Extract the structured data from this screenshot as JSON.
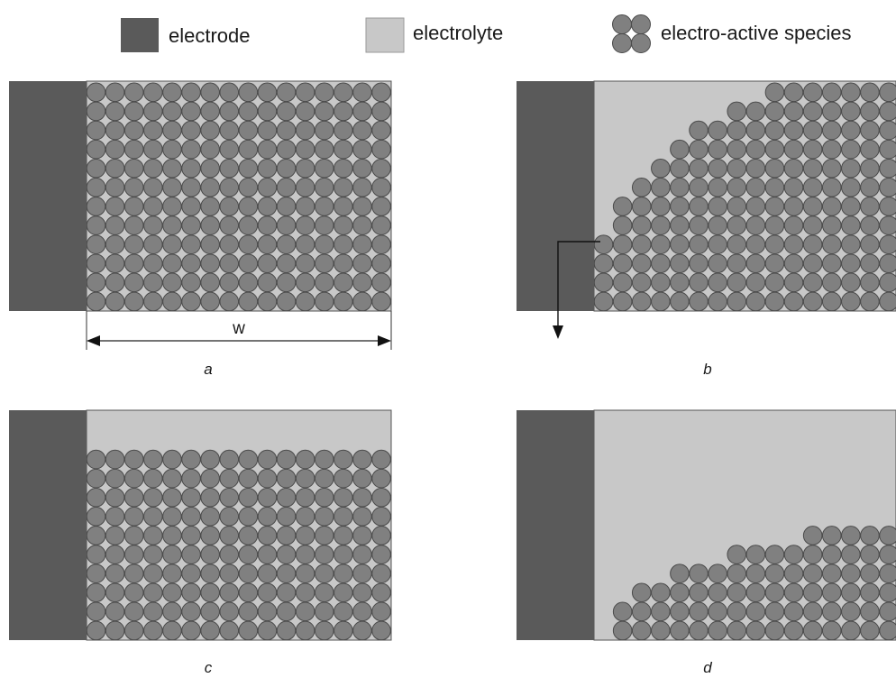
{
  "legend": {
    "electrode": "electrode",
    "electrolyte": "electrolyte",
    "species": "electro-active species"
  },
  "colors": {
    "electrode": "#5a5a5a",
    "electrolyte": "#c8c8c8",
    "species_fill": "#808080",
    "species_stroke": "#4a4a4a",
    "border": "#555555"
  },
  "dimension_label": "w",
  "panels": {
    "a": {
      "label": "a"
    },
    "b": {
      "label": "b"
    },
    "c": {
      "label": "c"
    },
    "d": {
      "label": "d"
    }
  }
}
